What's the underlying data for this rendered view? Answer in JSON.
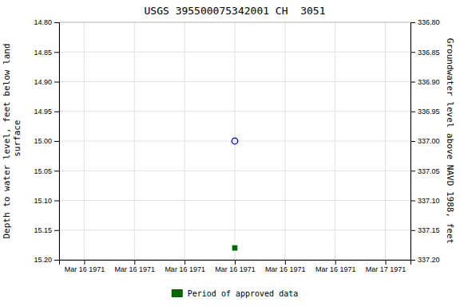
{
  "chart_data": {
    "type": "scatter",
    "title": "USGS 395500075342001 CH  3051",
    "y_label": "Depth to water level, feet below land\n surface",
    "y2_label": "Groundwater level above NAVD 1988, feet",
    "categories": [
      "Mar 16 1971",
      "Mar 16 1971",
      "Mar 16 1971",
      "Mar 16 1971",
      "Mar 16 1971",
      "Mar 16 1971",
      "Mar 17 1971"
    ],
    "series": [
      {
        "color": "#0000cc",
        "marker": "open-circle",
        "values": [
          null,
          null,
          null,
          15.0,
          null,
          null,
          null
        ]
      },
      {
        "name": "Period of approved data",
        "color": "#006600",
        "marker": "square",
        "values": [
          null,
          null,
          null,
          15.18,
          null,
          null,
          null
        ]
      }
    ],
    "ylim": [
      15.2,
      14.8
    ],
    "yticks": [
      {
        "value": 14.8,
        "label": "14.80"
      },
      14.85,
      {
        "value": 14.9,
        "label": "14.90"
      },
      14.95,
      {
        "value": 15.0,
        "label": "15.00"
      },
      15.05,
      {
        "value": 15.1,
        "label": "15.10"
      },
      15.15,
      {
        "value": 15.2,
        "label": "15.20"
      }
    ],
    "y2lim": [
      337.2,
      336.8
    ],
    "y2ticks": [
      {
        "value": 337.2,
        "label": "337.20"
      },
      337.15,
      {
        "value": 337.1,
        "label": "337.10"
      },
      337.05,
      {
        "value": 337.0,
        "label": "337.00"
      },
      336.95,
      {
        "value": 336.9,
        "label": "336.90"
      },
      336.85,
      {
        "value": 336.8,
        "label": "336.80"
      }
    ],
    "grid": true,
    "legend": "bottom"
  }
}
